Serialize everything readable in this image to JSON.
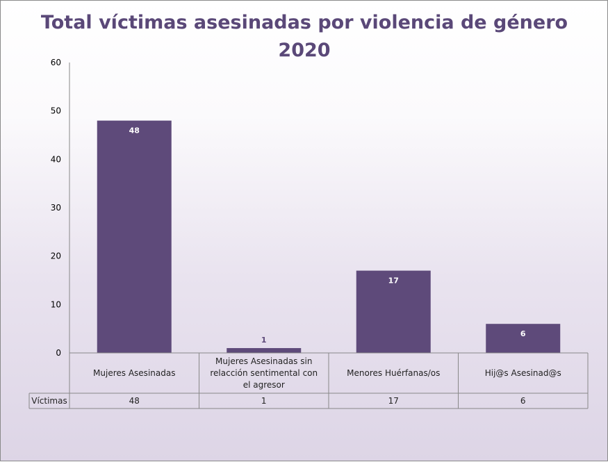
{
  "chart_data": {
    "type": "bar",
    "title": "Total víctimas asesinadas por violencia de género",
    "subtitle": "2020",
    "categories": [
      "Mujeres Asesinadas",
      "Mujeres Asesinadas sin relacción sentimental con el agresor",
      "Menores Huérfanas/os",
      "Hij@s Asesinad@s"
    ],
    "category_lines": [
      [
        "Mujeres Asesinadas"
      ],
      [
        "Mujeres Asesinadas sin",
        "relacción sentimental con",
        "el agresor"
      ],
      [
        "Menores Huérfanas/os"
      ],
      [
        "Hij@s Asesinad@s"
      ]
    ],
    "series": [
      {
        "name": "Víctimas",
        "values": [
          48,
          1,
          17,
          6
        ]
      }
    ],
    "ylim": [
      0,
      60
    ],
    "yticks": [
      0,
      10,
      20,
      30,
      40,
      50,
      60
    ],
    "grid": false,
    "legend": "data-table",
    "bar_color": "#5e4a7a",
    "title_color": "#5a4878"
  }
}
